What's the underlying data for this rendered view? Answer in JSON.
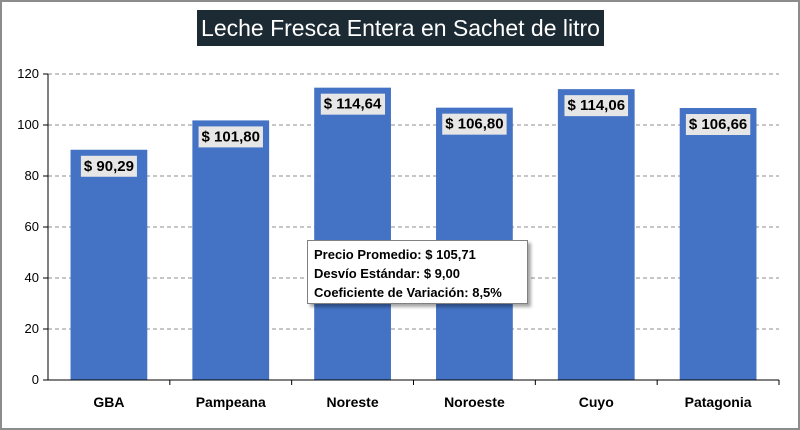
{
  "chart_data": {
    "type": "bar",
    "title": "Leche Fresca Entera en Sachet de litro",
    "categories": [
      "GBA",
      "Pampeana",
      "Noreste",
      "Noroeste",
      "Cuyo",
      "Patagonia"
    ],
    "values": [
      90.29,
      101.8,
      114.64,
      106.8,
      114.06,
      106.66
    ],
    "data_labels": [
      "$ 90,29",
      "$ 101,80",
      "$ 114,64",
      "$ 106,80",
      "$ 114,06",
      "$ 106,66"
    ],
    "ylim": [
      0,
      120
    ],
    "yticks": [
      0,
      20,
      40,
      60,
      80,
      100,
      120
    ],
    "grid": true,
    "bar_color": "#4472c4",
    "annotation": {
      "lines": [
        "Precio Promedio: $ 105,71",
        "Desvío Estándar: $ 9,00",
        "Coeficiente de Variación: 8,5%"
      ]
    }
  }
}
